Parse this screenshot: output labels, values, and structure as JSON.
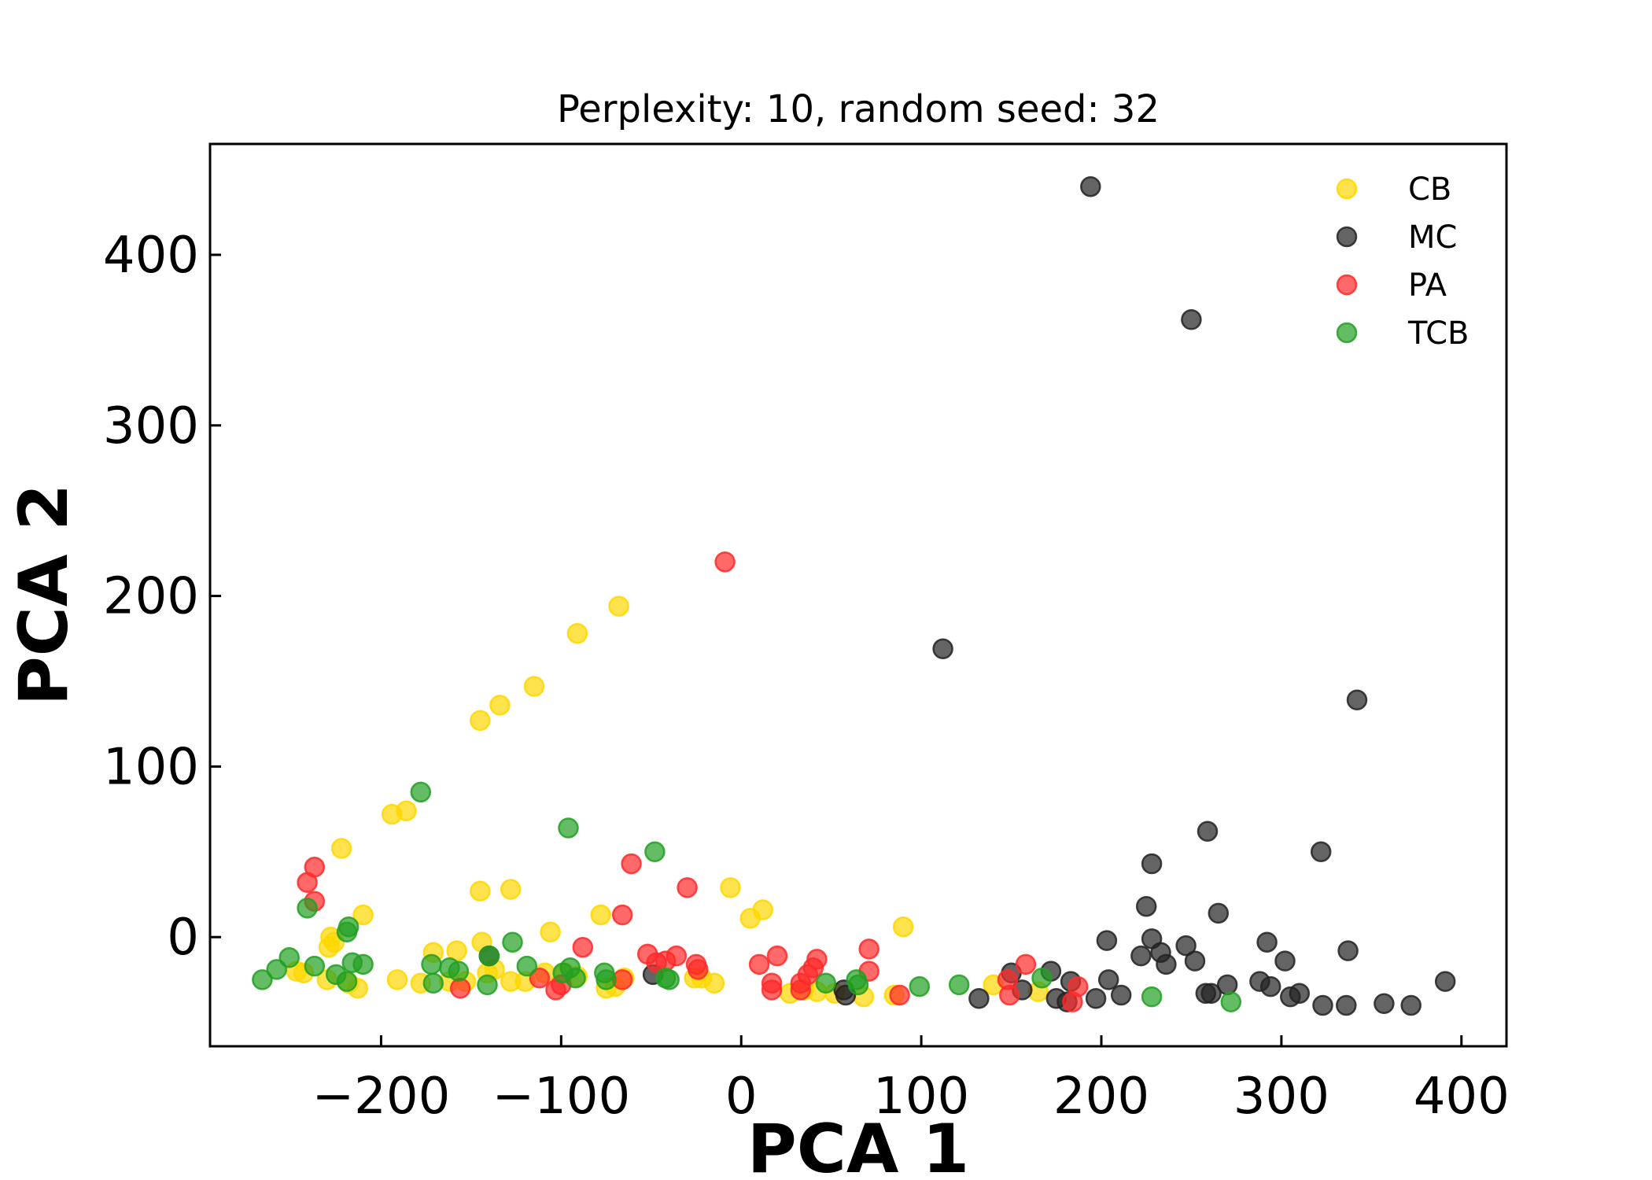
{
  "chart_data": {
    "type": "scatter",
    "title": "Perplexity: 10, random seed: 32",
    "xlabel": "PCA 1",
    "ylabel": "PCA 2",
    "xlim": [
      -295,
      425
    ],
    "ylim": [
      -64,
      465
    ],
    "xticks": [
      -200,
      -100,
      0,
      100,
      200,
      300,
      400
    ],
    "yticks": [
      0,
      100,
      200,
      300,
      400
    ],
    "xtick_labels": [
      "−200",
      "−100",
      "0",
      "100",
      "200",
      "300",
      "400"
    ],
    "ytick_labels": [
      "0",
      "100",
      "200",
      "300",
      "400"
    ],
    "grid": false,
    "legend_position": "top-right",
    "series": [
      {
        "name": "CB",
        "color": "#FFD700",
        "points": [
          [
            -145,
            127
          ],
          [
            -134,
            136
          ],
          [
            -115,
            147
          ],
          [
            -91,
            178
          ],
          [
            -68,
            194
          ],
          [
            -194,
            72
          ],
          [
            -186,
            74
          ],
          [
            -222,
            52
          ],
          [
            -210,
            13
          ],
          [
            -145,
            27
          ],
          [
            -128,
            28
          ],
          [
            -106,
            3
          ],
          [
            -78,
            13
          ],
          [
            -6,
            29
          ],
          [
            5,
            11
          ],
          [
            12,
            16
          ],
          [
            90,
            6
          ],
          [
            -228,
            0
          ],
          [
            -226,
            -3
          ],
          [
            -229,
            -6
          ],
          [
            -247,
            -20
          ],
          [
            -243,
            -21
          ],
          [
            -230,
            -25
          ],
          [
            -218,
            -27
          ],
          [
            -213,
            -30
          ],
          [
            -191,
            -25
          ],
          [
            -171,
            -9
          ],
          [
            -158,
            -8
          ],
          [
            -144,
            -3
          ],
          [
            -178,
            -27
          ],
          [
            -162,
            -26
          ],
          [
            -153,
            -26
          ],
          [
            -141,
            -21
          ],
          [
            -137,
            -19
          ],
          [
            -128,
            -26
          ],
          [
            -120,
            -26
          ],
          [
            -109,
            -21
          ],
          [
            -98,
            -21
          ],
          [
            -91,
            -23
          ],
          [
            -75,
            -30
          ],
          [
            -70,
            -29
          ],
          [
            -65,
            -24
          ],
          [
            -26,
            -24
          ],
          [
            -22,
            -24
          ],
          [
            -15,
            -27
          ],
          [
            27,
            -33
          ],
          [
            35,
            -31
          ],
          [
            42,
            -32
          ],
          [
            52,
            -33
          ],
          [
            68,
            -35
          ],
          [
            85,
            -34
          ],
          [
            140,
            -28
          ],
          [
            165,
            -32
          ]
        ]
      },
      {
        "name": "MC",
        "color": "#222222",
        "points": [
          [
            194,
            440
          ],
          [
            250,
            362
          ],
          [
            112,
            169
          ],
          [
            342,
            139
          ],
          [
            259,
            62
          ],
          [
            322,
            50
          ],
          [
            228,
            43
          ],
          [
            225,
            18
          ],
          [
            265,
            14
          ],
          [
            203,
            -2
          ],
          [
            228,
            -1
          ],
          [
            233,
            -9
          ],
          [
            236,
            -16
          ],
          [
            247,
            -5
          ],
          [
            252,
            -14
          ],
          [
            222,
            -11
          ],
          [
            292,
            -3
          ],
          [
            302,
            -14
          ],
          [
            337,
            -8
          ],
          [
            258,
            -33
          ],
          [
            261,
            -33
          ],
          [
            270,
            -28
          ],
          [
            288,
            -26
          ],
          [
            294,
            -29
          ],
          [
            305,
            -35
          ],
          [
            310,
            -33
          ],
          [
            323,
            -40
          ],
          [
            336,
            -40
          ],
          [
            357,
            -39
          ],
          [
            372,
            -40
          ],
          [
            391,
            -26
          ],
          [
            132,
            -36
          ],
          [
            150,
            -21
          ],
          [
            156,
            -31
          ],
          [
            172,
            -20
          ],
          [
            175,
            -36
          ],
          [
            181,
            -38
          ],
          [
            183,
            -26
          ],
          [
            197,
            -36
          ],
          [
            204,
            -25
          ],
          [
            211,
            -34
          ],
          [
            -140,
            -11
          ],
          [
            -49,
            -22
          ],
          [
            57,
            -31
          ],
          [
            58,
            -34
          ]
        ]
      },
      {
        "name": "PA",
        "color": "#FF2A2A",
        "points": [
          [
            -9,
            220
          ],
          [
            -237,
            41
          ],
          [
            -241,
            32
          ],
          [
            -237,
            21
          ],
          [
            -61,
            43
          ],
          [
            -66,
            13
          ],
          [
            -30,
            29
          ],
          [
            -88,
            -6
          ],
          [
            -52,
            -10
          ],
          [
            -47,
            -15
          ],
          [
            -42,
            -14
          ],
          [
            -36,
            -11
          ],
          [
            -25,
            -16
          ],
          [
            -24,
            -19
          ],
          [
            -112,
            -24
          ],
          [
            -103,
            -31
          ],
          [
            -100,
            -28
          ],
          [
            -66,
            -25
          ],
          [
            -156,
            -30
          ],
          [
            10,
            -16
          ],
          [
            20,
            -11
          ],
          [
            17,
            -27
          ],
          [
            17,
            -31
          ],
          [
            33,
            -27
          ],
          [
            33,
            -31
          ],
          [
            37,
            -22
          ],
          [
            40,
            -18
          ],
          [
            42,
            -13
          ],
          [
            71,
            -7
          ],
          [
            71,
            -20
          ],
          [
            88,
            -34
          ],
          [
            148,
            -25
          ],
          [
            149,
            -34
          ],
          [
            158,
            -16
          ],
          [
            184,
            -38
          ],
          [
            187,
            -29
          ]
        ]
      },
      {
        "name": "TCB",
        "color": "#22A022",
        "points": [
          [
            -178,
            85
          ],
          [
            -96,
            64
          ],
          [
            -48,
            50
          ],
          [
            -241,
            17
          ],
          [
            -218,
            6
          ],
          [
            -219,
            3
          ],
          [
            -127,
            -3
          ],
          [
            -140,
            -11
          ],
          [
            -251,
            -12
          ],
          [
            -237,
            -17
          ],
          [
            -258,
            -19
          ],
          [
            -266,
            -25
          ],
          [
            -225,
            -22
          ],
          [
            -219,
            -26
          ],
          [
            -216,
            -15
          ],
          [
            -210,
            -16
          ],
          [
            -172,
            -16
          ],
          [
            -171,
            -27
          ],
          [
            -162,
            -18
          ],
          [
            -157,
            -20
          ],
          [
            -141,
            -28
          ],
          [
            -119,
            -17
          ],
          [
            -99,
            -21
          ],
          [
            -95,
            -18
          ],
          [
            -92,
            -24
          ],
          [
            -76,
            -21
          ],
          [
            -75,
            -25
          ],
          [
            -42,
            -24
          ],
          [
            -40,
            -25
          ],
          [
            47,
            -27
          ],
          [
            64,
            -25
          ],
          [
            65,
            -28
          ],
          [
            99,
            -29
          ],
          [
            121,
            -28
          ],
          [
            167,
            -24
          ],
          [
            228,
            -35
          ],
          [
            272,
            -38
          ]
        ]
      }
    ]
  }
}
